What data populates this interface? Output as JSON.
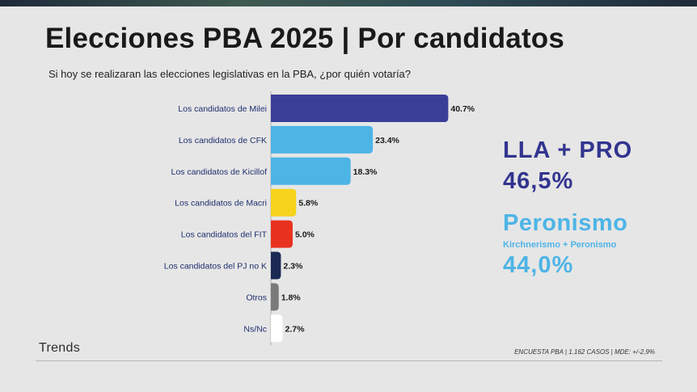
{
  "title": "Elecciones PBA 2025 | Por candidatos",
  "subtitle": "Si hoy se realizaran las elecciones legislativas en la PBA, ¿por quién votaría?",
  "chart_data": {
    "type": "bar",
    "orientation": "horizontal",
    "categories": [
      "Los candidatos de Milei",
      "Los candidatos de CFK",
      "Los candidatos de Kicillof",
      "Los candidatos de Macri",
      "Los candidatos del FIT",
      "Los candidatos del PJ no K",
      "Otros",
      "Ns/Nc"
    ],
    "values": [
      40.7,
      23.4,
      18.3,
      5.8,
      5.0,
      2.3,
      1.8,
      2.7
    ],
    "value_labels": [
      "40.7%",
      "23.4%",
      "18.3%",
      "5.8%",
      "5.0%",
      "2.3%",
      "1.8%",
      "2.7%"
    ],
    "colors": [
      "#3b3e96",
      "#4db4e6",
      "#4db4e6",
      "#f7d31b",
      "#e8321f",
      "#1a2a55",
      "#7a7a7a",
      "#ffffff"
    ],
    "grid": false,
    "legend": "none"
  },
  "summary": {
    "lla_label": "LLA + PRO",
    "lla_value": "46,5%",
    "peronismo_label": "Peronismo",
    "peronismo_sublabel": "Kirchnerismo + Peronismo",
    "peronismo_value": "44,0%"
  },
  "brand": "Trends",
  "footnote": "ENCUESTA PBA | 1.162 CASOS | MDE: +/-2,9%"
}
